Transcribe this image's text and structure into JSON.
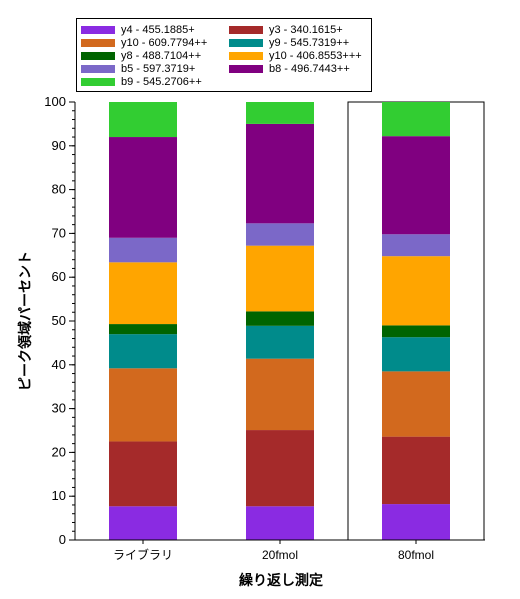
{
  "chart_data": {
    "type": "bar",
    "stacked": true,
    "title": "",
    "xlabel": "繰り返し測定",
    "ylabel": "ピーク領域パーセント",
    "ylim": [
      0,
      100
    ],
    "yticks": [
      0,
      10,
      20,
      30,
      40,
      50,
      60,
      70,
      80,
      90,
      100
    ],
    "categories": [
      "ライブラリ",
      "20fmol",
      "80fmol"
    ],
    "highlighted_category": "80fmol",
    "legend_position": "top-left",
    "series": [
      {
        "name": "y4 - 455.1885+",
        "color": "#8a2be2",
        "values": [
          7.7,
          7.7,
          8.2
        ]
      },
      {
        "name": "y3 - 340.1615+",
        "color": "#a52a2a",
        "values": [
          14.8,
          17.4,
          15.4
        ]
      },
      {
        "name": "y10 - 609.7794++",
        "color": "#d2691e",
        "values": [
          16.7,
          16.3,
          14.9
        ]
      },
      {
        "name": "y9 - 545.7319++",
        "color": "#008b8b",
        "values": [
          7.8,
          7.5,
          7.8
        ]
      },
      {
        "name": "y8 - 488.7104++",
        "color": "#006400",
        "values": [
          2.3,
          3.3,
          2.7
        ]
      },
      {
        "name": "y10 - 406.8553+++",
        "color": "#ffa500",
        "values": [
          14.1,
          15.0,
          15.8
        ]
      },
      {
        "name": "b5 - 597.3719+",
        "color": "#7b68c8",
        "values": [
          5.6,
          5.1,
          5.0
        ]
      },
      {
        "name": "b8 - 496.7443++",
        "color": "#800080",
        "values": [
          23.0,
          22.7,
          22.4
        ]
      },
      {
        "name": "b9 - 545.2706++",
        "color": "#32cd32",
        "values": [
          8.0,
          5.0,
          7.8
        ]
      }
    ]
  }
}
